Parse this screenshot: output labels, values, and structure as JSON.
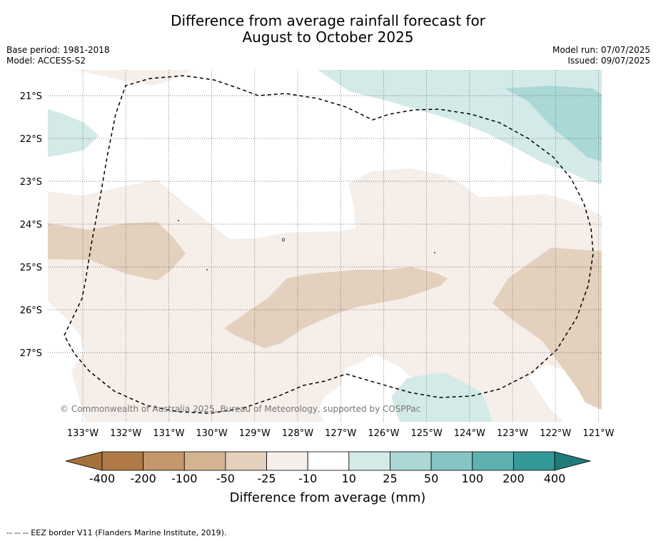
{
  "title": {
    "line1": "Difference from average rainfall forecast for",
    "line2": "August to October 2025"
  },
  "meta_left": {
    "base_period": "Base period: 1981-2018",
    "model": "Model: ACCESS-S2"
  },
  "meta_right": {
    "model_run": "Model run: 07/07/2025",
    "issued": "Issued: 09/07/2025"
  },
  "map": {
    "lat_labels": [
      "21°S",
      "22°S",
      "23°S",
      "24°S",
      "25°S",
      "26°S",
      "27°S"
    ],
    "lon_labels": [
      "133°W",
      "132°W",
      "131°W",
      "130°W",
      "129°W",
      "128°W",
      "127°W",
      "126°W",
      "125°W",
      "124°W",
      "123°W",
      "122°W",
      "121°W"
    ],
    "copyright": "© Commonwealth of Australia 2025, Bureau of Meteorology, supported by COSPPac"
  },
  "colorbar": {
    "ticks": [
      "-400",
      "-200",
      "-100",
      "-50",
      "-25",
      "-10",
      "10",
      "25",
      "50",
      "100",
      "200",
      "400"
    ],
    "label": "Difference from average (mm)",
    "colors": [
      "#a5713a",
      "#af7a45",
      "#c4976c",
      "#d4b391",
      "#e3d0bd",
      "#f5eee9",
      "#ffffff",
      "#d3eae8",
      "#aad8d6",
      "#86c5c3",
      "#5eb1ae",
      "#35999a",
      "#1f7a7a"
    ]
  },
  "footnote": "--  --  -- EEZ border V11 (Flanders Marine Institute, 2019)."
}
